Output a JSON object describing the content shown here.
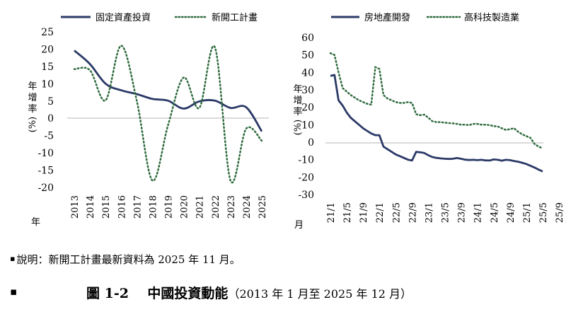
{
  "chart_data": [
    {
      "type": "line",
      "ylabel": "年增率(%)",
      "xlabel": "年",
      "ylim": [
        -20,
        25
      ],
      "yticks": [
        "25",
        "20",
        "15",
        "10",
        "5",
        "0",
        "-5",
        "-10",
        "-15",
        "-20"
      ],
      "x": [
        "2013",
        "2014",
        "2015",
        "2016",
        "2017",
        "2018",
        "2019",
        "2020",
        "2021",
        "2022",
        "2023",
        "2024",
        "2025"
      ],
      "series": [
        {
          "name": "固定資產投資",
          "style": "solid",
          "color": "#2b3a67",
          "values": [
            19.6,
            15.7,
            10.0,
            8.1,
            7.0,
            5.6,
            5.1,
            2.8,
            4.9,
            5.1,
            3.0,
            3.2,
            -3.8
          ]
        },
        {
          "name": "新開工計畫",
          "style": "dotted",
          "color": "#2f6b3e",
          "values": [
            14.2,
            13.9,
            5.2,
            21.0,
            5.1,
            -18.0,
            -2.0,
            11.8,
            3.0,
            20.5,
            -18.0,
            -3.0,
            -6.5
          ]
        }
      ]
    },
    {
      "type": "line",
      "ylabel": "年增率(%)",
      "xlabel": "月",
      "ylim": [
        -30,
        60
      ],
      "yticks": [
        "60",
        "50",
        "40",
        "30",
        "20",
        "10",
        "0",
        "-10",
        "-20",
        "-30"
      ],
      "x_ticks": [
        "21/1",
        "21/5",
        "21/9",
        "22/1",
        "22/5",
        "22/9",
        "23/1",
        "23/5",
        "23/9",
        "24/1",
        "24/5",
        "24/9",
        "25/1",
        "25/5",
        "25/9"
      ],
      "series": [
        {
          "name": "房地產開發",
          "style": "solid",
          "color": "#2b3a67",
          "values": [
            38,
            38.5,
            24,
            21,
            17,
            14,
            12,
            10,
            8,
            6.5,
            5,
            4,
            4,
            -2.5,
            -4,
            -5.5,
            -7,
            -8,
            -9,
            -10,
            -10.5,
            -5.5,
            -5.8,
            -6.2,
            -7.5,
            -8.5,
            -9,
            -9.3,
            -9.5,
            -9.6,
            -9.5,
            -9.1,
            -9.5,
            -10,
            -10.2,
            -10.1,
            -10.3,
            -10.1,
            -10.4,
            -10.5,
            -9.9,
            -10.1,
            -10.6,
            -10.1,
            -10.3,
            -10.8,
            -11.2,
            -11.8,
            -12.5,
            -13.5,
            -14.5,
            -15.7,
            -16.8
          ]
        },
        {
          "name": "高科技製造業",
          "style": "dotted",
          "color": "#2f6b3e",
          "values": [
            51,
            50,
            40,
            31,
            29,
            27,
            25.5,
            24,
            23,
            22,
            21.5,
            43,
            42,
            27,
            25,
            24,
            23,
            22.5,
            22.5,
            23,
            22.5,
            16,
            15.5,
            15.8,
            14,
            12,
            11.5,
            11.5,
            11.2,
            11,
            10.8,
            10.5,
            10,
            10,
            9.8,
            10.5,
            10.5,
            10,
            10,
            9.8,
            9.2,
            9,
            8,
            7,
            7.5,
            8,
            6,
            4.5,
            3.5,
            2.5,
            -1,
            -2.5,
            -3.5
          ]
        }
      ]
    }
  ],
  "footnote": {
    "bullet": "▪",
    "text": "說明：新開工計畫最新資料為 2025 年 11 月。"
  },
  "caption": {
    "bullet": "▪",
    "label": "圖 1-2",
    "title": "中國投資動能",
    "period": "（2013 年 1 月至 2025 年 12 月）"
  }
}
